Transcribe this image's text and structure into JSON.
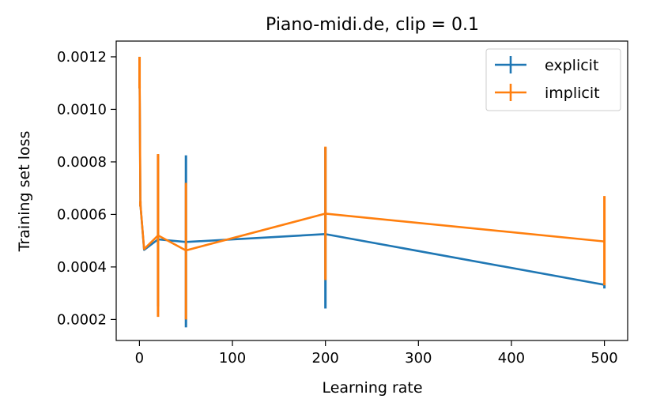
{
  "chart_data": {
    "type": "line",
    "title": "Piano-midi.de, clip = 0.1",
    "xlabel": "Learning rate",
    "ylabel": "Training set loss",
    "xlim": [
      -25,
      525
    ],
    "ylim": [
      0.00012,
      0.00126
    ],
    "xticks": [
      {
        "value": 0,
        "label": "0"
      },
      {
        "value": 100,
        "label": "100"
      },
      {
        "value": 200,
        "label": "200"
      },
      {
        "value": 300,
        "label": "300"
      },
      {
        "value": 400,
        "label": "400"
      },
      {
        "value": 500,
        "label": "500"
      }
    ],
    "yticks": [
      {
        "value": 0.0002,
        "label": "0.0002"
      },
      {
        "value": 0.0004,
        "label": "0.0004"
      },
      {
        "value": 0.0006,
        "label": "0.0006"
      },
      {
        "value": 0.0008,
        "label": "0.0008"
      },
      {
        "value": 0.001,
        "label": "0.0010"
      },
      {
        "value": 0.0012,
        "label": "0.0012"
      }
    ],
    "grid": false,
    "legend_position": "top-right",
    "series": [
      {
        "name": "explicit",
        "color": "#1f77b4",
        "x": [
          0.1,
          1,
          5,
          20,
          50,
          200,
          500
        ],
        "y": [
          0.00115,
          0.00064,
          0.000465,
          0.000505,
          0.000495,
          0.000525,
          0.000332
        ],
        "yerr_low": [
          0.00108,
          0.00063,
          0.000465,
          0.00025,
          0.00017,
          0.000242,
          0.000318
        ],
        "yerr_high": [
          0.0012,
          0.00065,
          0.000465,
          0.000825,
          0.000825,
          0.000855,
          0.00034
        ]
      },
      {
        "name": "implicit",
        "color": "#ff7f0e",
        "x": [
          0.1,
          1,
          5,
          20,
          50,
          200,
          500
        ],
        "y": [
          0.00119,
          0.00064,
          0.000468,
          0.00052,
          0.000463,
          0.000603,
          0.000497
        ],
        "yerr_low": [
          0.00108,
          0.00063,
          0.000468,
          0.00021,
          0.0002,
          0.00035,
          0.00033
        ],
        "yerr_high": [
          0.0012,
          0.00065,
          0.000468,
          0.00083,
          0.00072,
          0.000858,
          0.00067
        ]
      }
    ]
  }
}
